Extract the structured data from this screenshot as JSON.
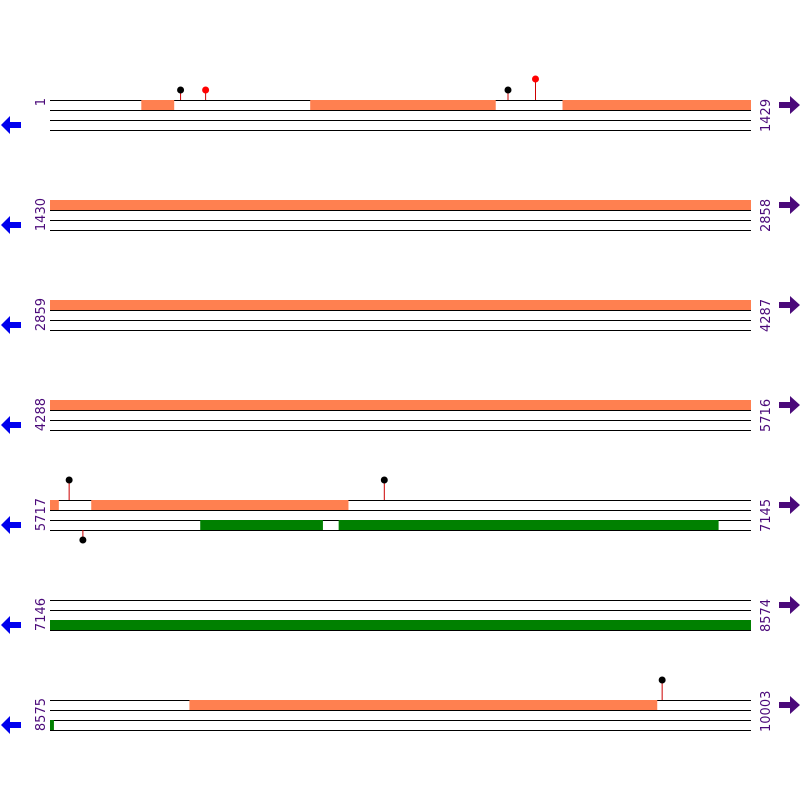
{
  "diagram": {
    "colors": {
      "strand": "#000000",
      "forward_feature": "#ff8050",
      "reverse_feature": "#008000",
      "stem": "#cc0000",
      "marker_black": "#000000",
      "marker_red": "#ff0000",
      "arrow_left": "#0000ee",
      "arrow_right": "#4b0a7a",
      "label": "#4b0a7a"
    },
    "icons": {
      "left": "arrow-left-icon",
      "right": "arrow-right-icon"
    },
    "rows": [
      {
        "start_label": "1",
        "end_label": "1429",
        "start": 1,
        "end": 1429,
        "forward": [
          [
            187,
            254
          ],
          [
            531,
            909
          ],
          [
            1045,
            1429
          ]
        ],
        "reverse": [],
        "markers": [
          {
            "pos": 267,
            "strand": "top",
            "color": "black",
            "height": "short"
          },
          {
            "pos": 318,
            "strand": "top",
            "color": "red",
            "height": "short"
          },
          {
            "pos": 934,
            "strand": "top",
            "color": "black",
            "height": "short"
          },
          {
            "pos": 990,
            "strand": "top",
            "color": "red",
            "height": "tall"
          }
        ]
      },
      {
        "start_label": "1430",
        "end_label": "2858",
        "start": 1430,
        "end": 2858,
        "forward": [
          [
            1430,
            2858
          ]
        ],
        "reverse": [],
        "markers": []
      },
      {
        "start_label": "2859",
        "end_label": "4287",
        "start": 2859,
        "end": 4287,
        "forward": [
          [
            2859,
            4287
          ]
        ],
        "reverse": [],
        "markers": []
      },
      {
        "start_label": "4288",
        "end_label": "5716",
        "start": 4288,
        "end": 5716,
        "forward": [
          [
            4288,
            5716
          ]
        ],
        "reverse": [],
        "markers": []
      },
      {
        "start_label": "5717",
        "end_label": "7145",
        "start": 5717,
        "end": 7145,
        "forward": [
          [
            5717,
            5735
          ],
          [
            5801,
            6325
          ]
        ],
        "reverse": [
          [
            6023,
            6273
          ],
          [
            6305,
            7079
          ]
        ],
        "markers": [
          {
            "pos": 5756,
            "strand": "top",
            "color": "black",
            "height": "medium"
          },
          {
            "pos": 6398,
            "strand": "top",
            "color": "black",
            "height": "medium"
          },
          {
            "pos": 5784,
            "strand": "bottom",
            "color": "black",
            "height": "short"
          }
        ]
      },
      {
        "start_label": "7146",
        "end_label": "8574",
        "start": 7146,
        "end": 8574,
        "forward": [],
        "reverse": [
          [
            7146,
            8574
          ]
        ],
        "markers": []
      },
      {
        "start_label": "8575",
        "end_label": "10003",
        "start": 8575,
        "end": 10003,
        "forward": [
          [
            8859,
            9812
          ]
        ],
        "reverse": [
          [
            8575,
            8583
          ]
        ],
        "markers": [
          {
            "pos": 9822,
            "strand": "top",
            "color": "black",
            "height": "medium"
          }
        ]
      }
    ]
  }
}
